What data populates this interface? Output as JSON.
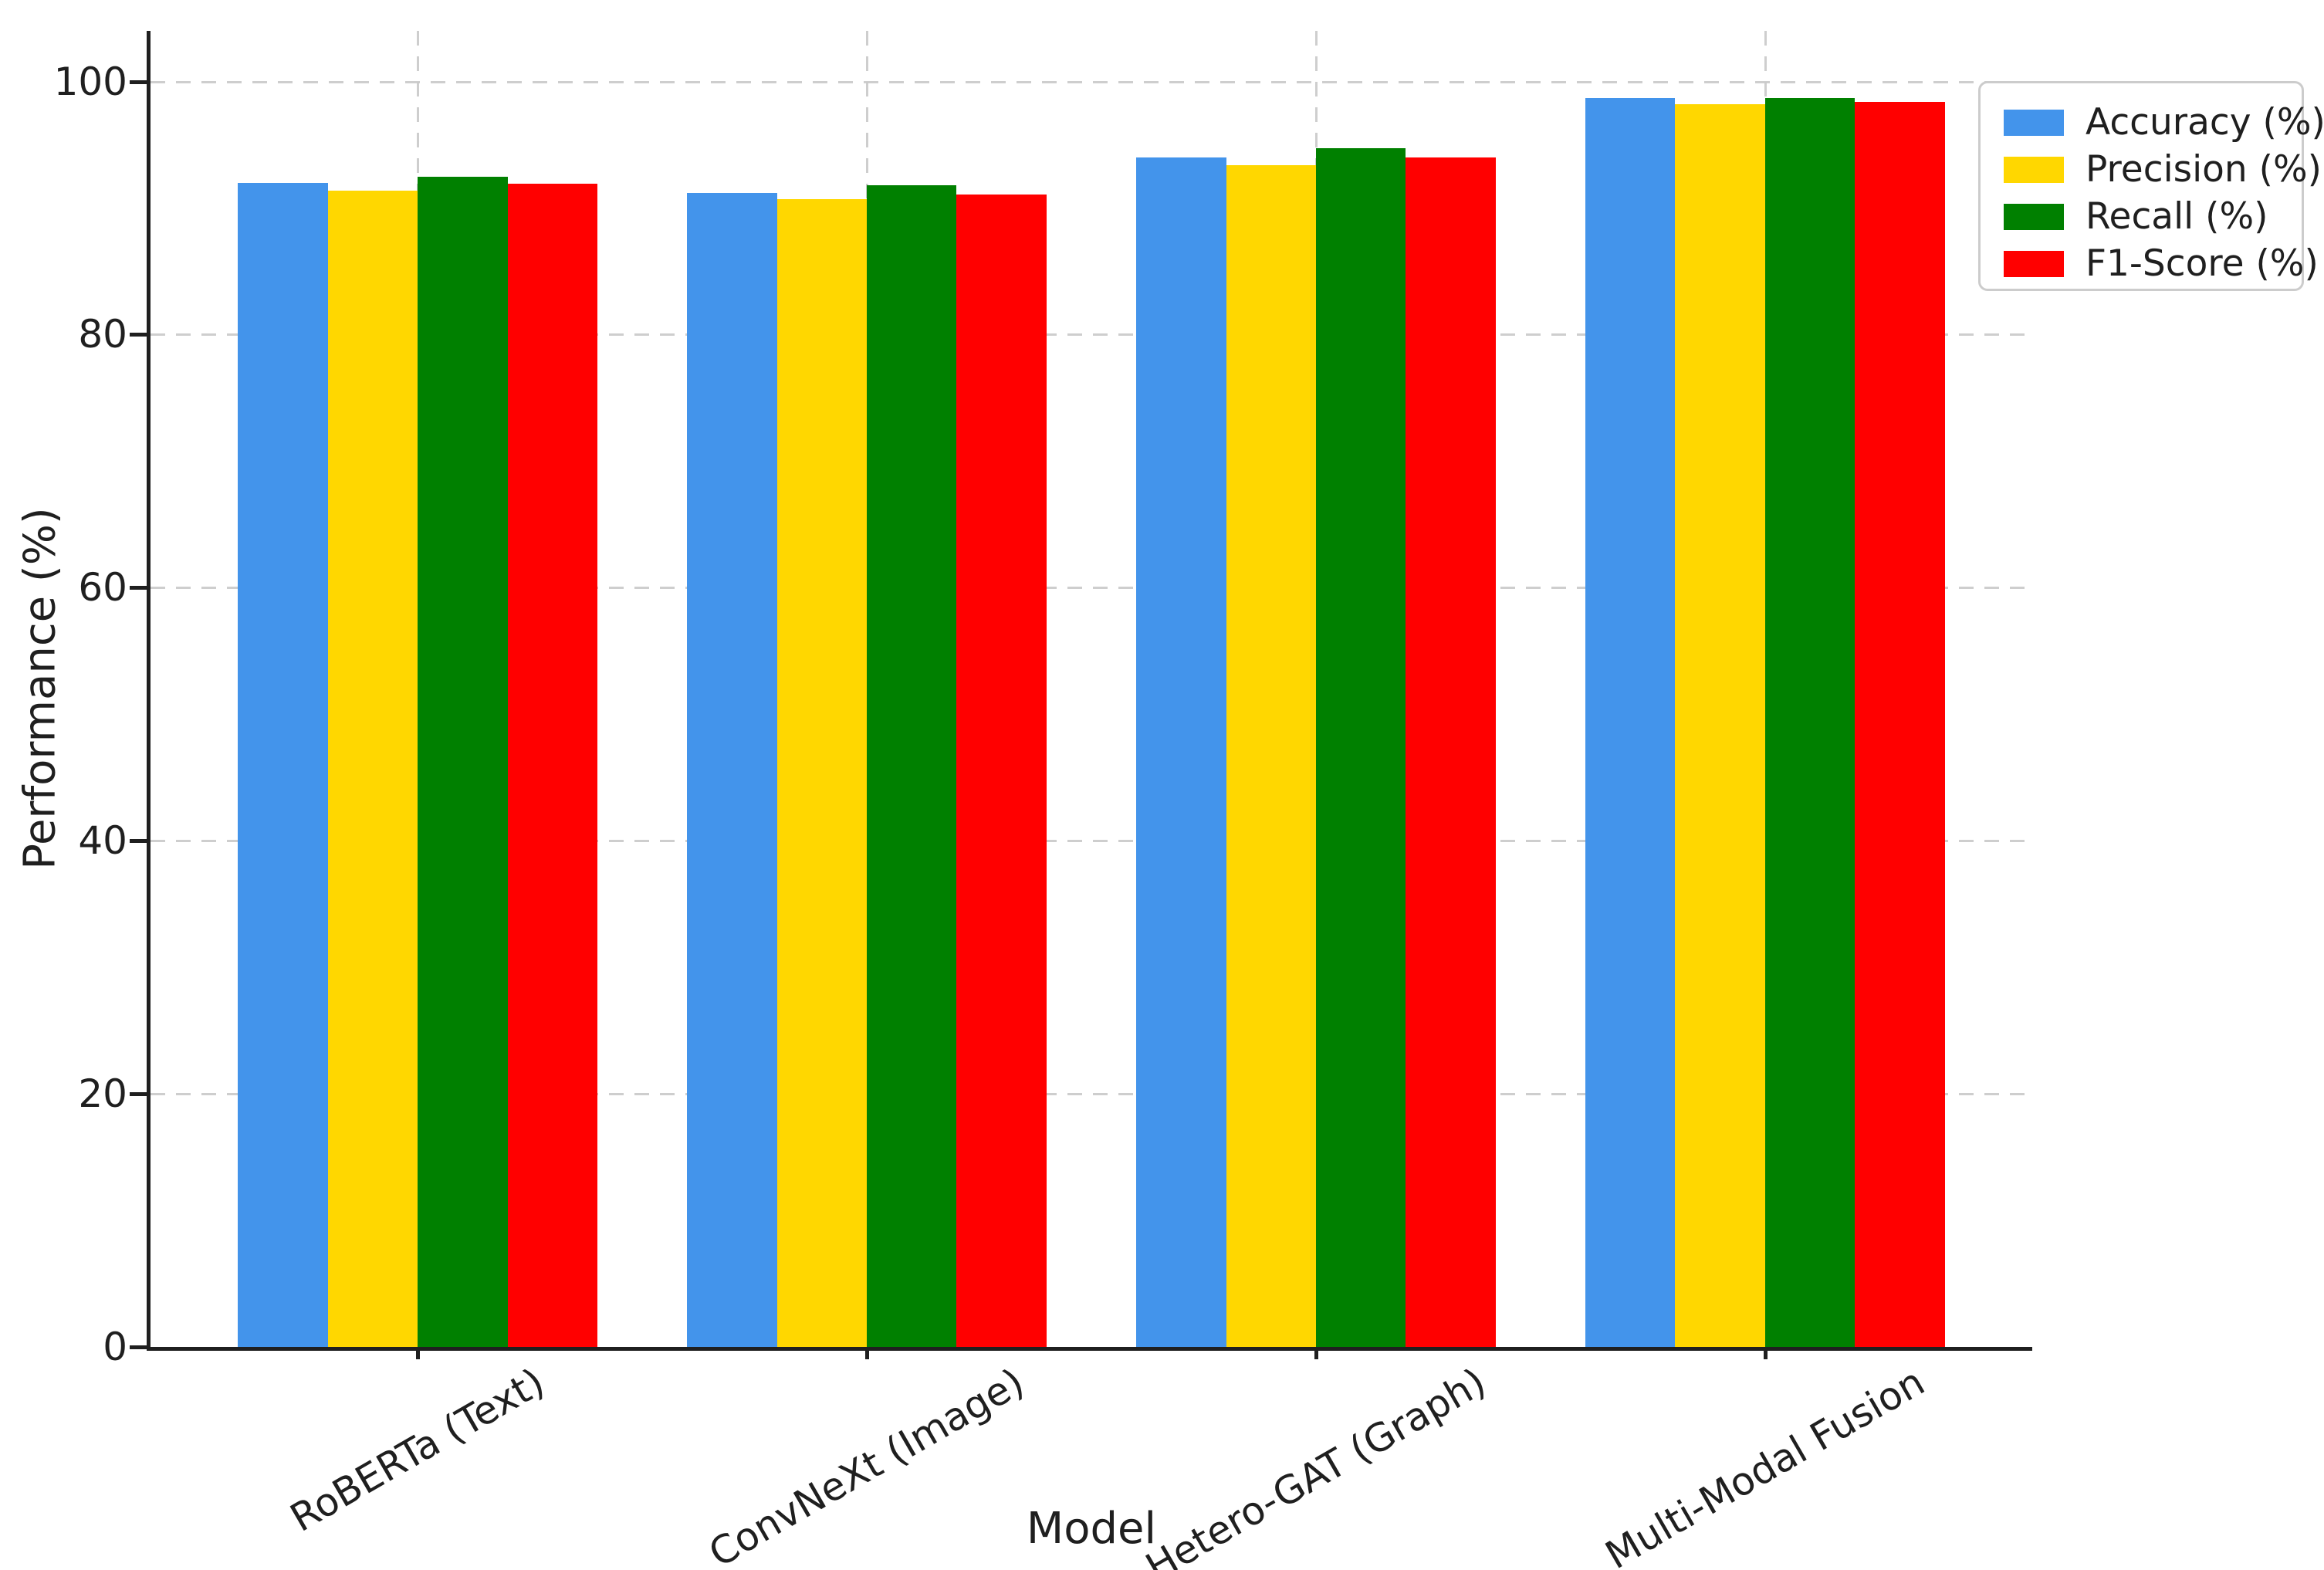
{
  "chart_data": {
    "type": "bar",
    "title": "",
    "xlabel": "Model",
    "ylabel": "Performance (%)",
    "categories": [
      "RoBERTa (Text)",
      "ConvNeXt (Image)",
      "Hetero-GAT (Graph)",
      "Multi-Modal Fusion"
    ],
    "series": [
      {
        "name": "Accuracy (%)",
        "color": "#4394EB",
        "values": [
          92.0,
          91.2,
          94.0,
          98.7
        ]
      },
      {
        "name": "Precision (%)",
        "color": "#FFD700",
        "values": [
          91.4,
          90.7,
          93.4,
          98.2
        ]
      },
      {
        "name": "Recall (%)",
        "color": "#008000",
        "values": [
          92.5,
          91.8,
          94.7,
          98.7
        ]
      },
      {
        "name": "F1-Score (%)",
        "color": "#FF0000",
        "values": [
          91.9,
          91.1,
          94.0,
          98.4
        ]
      }
    ],
    "ylim": [
      0,
      104
    ],
    "yticks": [
      0,
      20,
      40,
      60,
      80,
      100
    ],
    "xtick_rotation_deg": 30,
    "grid": true,
    "grid_style": "dashed",
    "legend_position": "upper right",
    "bar_group_width_units": 0.8,
    "axis_color": "#1f1f1f",
    "grid_color": "#c9c9c9"
  }
}
